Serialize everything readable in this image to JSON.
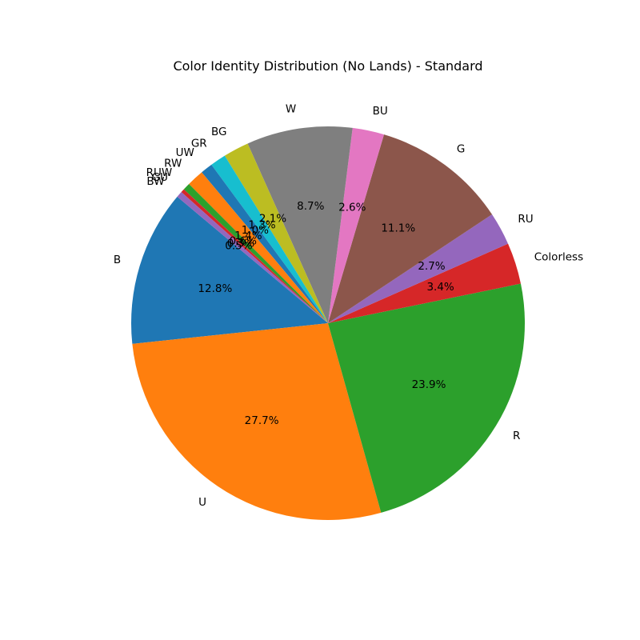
{
  "chart_data": {
    "type": "pie",
    "title": "Color Identity Distribution (No Lands) - Standard",
    "slices": [
      {
        "label": "B",
        "value": 12.8,
        "pct_label": "12.8%",
        "color": "#1f77b4"
      },
      {
        "label": "U",
        "value": 27.7,
        "pct_label": "27.7%",
        "color": "#ff7f0e"
      },
      {
        "label": "R",
        "value": 23.9,
        "pct_label": "23.9%",
        "color": "#2ca02c"
      },
      {
        "label": "Colorless",
        "value": 3.4,
        "pct_label": "3.4%",
        "color": "#d62728"
      },
      {
        "label": "RU",
        "value": 2.7,
        "pct_label": "2.7%",
        "color": "#9467bd"
      },
      {
        "label": "G",
        "value": 11.1,
        "pct_label": "11.1%",
        "color": "#8c564b"
      },
      {
        "label": "BU",
        "value": 2.6,
        "pct_label": "2.6%",
        "color": "#e377c2"
      },
      {
        "label": "W",
        "value": 8.7,
        "pct_label": "8.7%",
        "color": "#7f7f7f"
      },
      {
        "label": "BG",
        "value": 2.1,
        "pct_label": "2.1%",
        "color": "#bcbd22"
      },
      {
        "label": "GR",
        "value": 1.3,
        "pct_label": "1.3%",
        "color": "#17becf"
      },
      {
        "label": "UW",
        "value": 1.0,
        "pct_label": "1.0%",
        "color": "#1f77b4"
      },
      {
        "label": "RW",
        "value": 1.4,
        "pct_label": "1.4%",
        "color": "#ff7f0e"
      },
      {
        "label": "RUW",
        "value": 0.6,
        "pct_label": "0.6%",
        "color": "#2ca02c"
      },
      {
        "label": "GU",
        "value": 0.3,
        "pct_label": "0.3%",
        "color": "#d62728"
      },
      {
        "label": "BW",
        "value": 0.5,
        "pct_label": "0.5%",
        "color": "#9467bd"
      }
    ],
    "start_angle_deg": 140,
    "direction": "counterclockwise"
  }
}
